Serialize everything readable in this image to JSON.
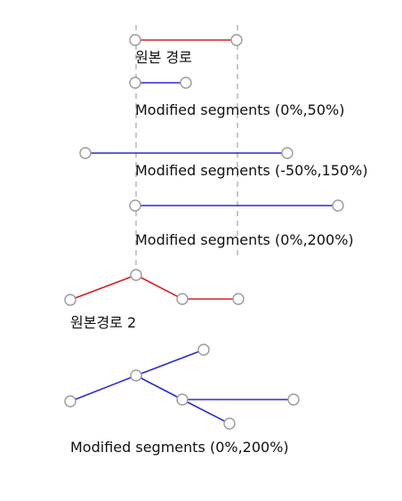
{
  "labels": {
    "original_path": "원본 경로",
    "mod_0_50": "Modified segments (0%,50%)",
    "mod_neg50_150": "Modified segments (-50%,150%)",
    "mod_0_200_a": "Modified segments (0%,200%)",
    "original_path_2": "원본경로 2",
    "mod_0_200_b": "Modified segments (0%,200%)"
  },
  "colors": {
    "original": "#d42020",
    "modified": "#2a2ad2",
    "node_stroke": "#9a9a9a",
    "guide": "#aaaaaa"
  }
}
